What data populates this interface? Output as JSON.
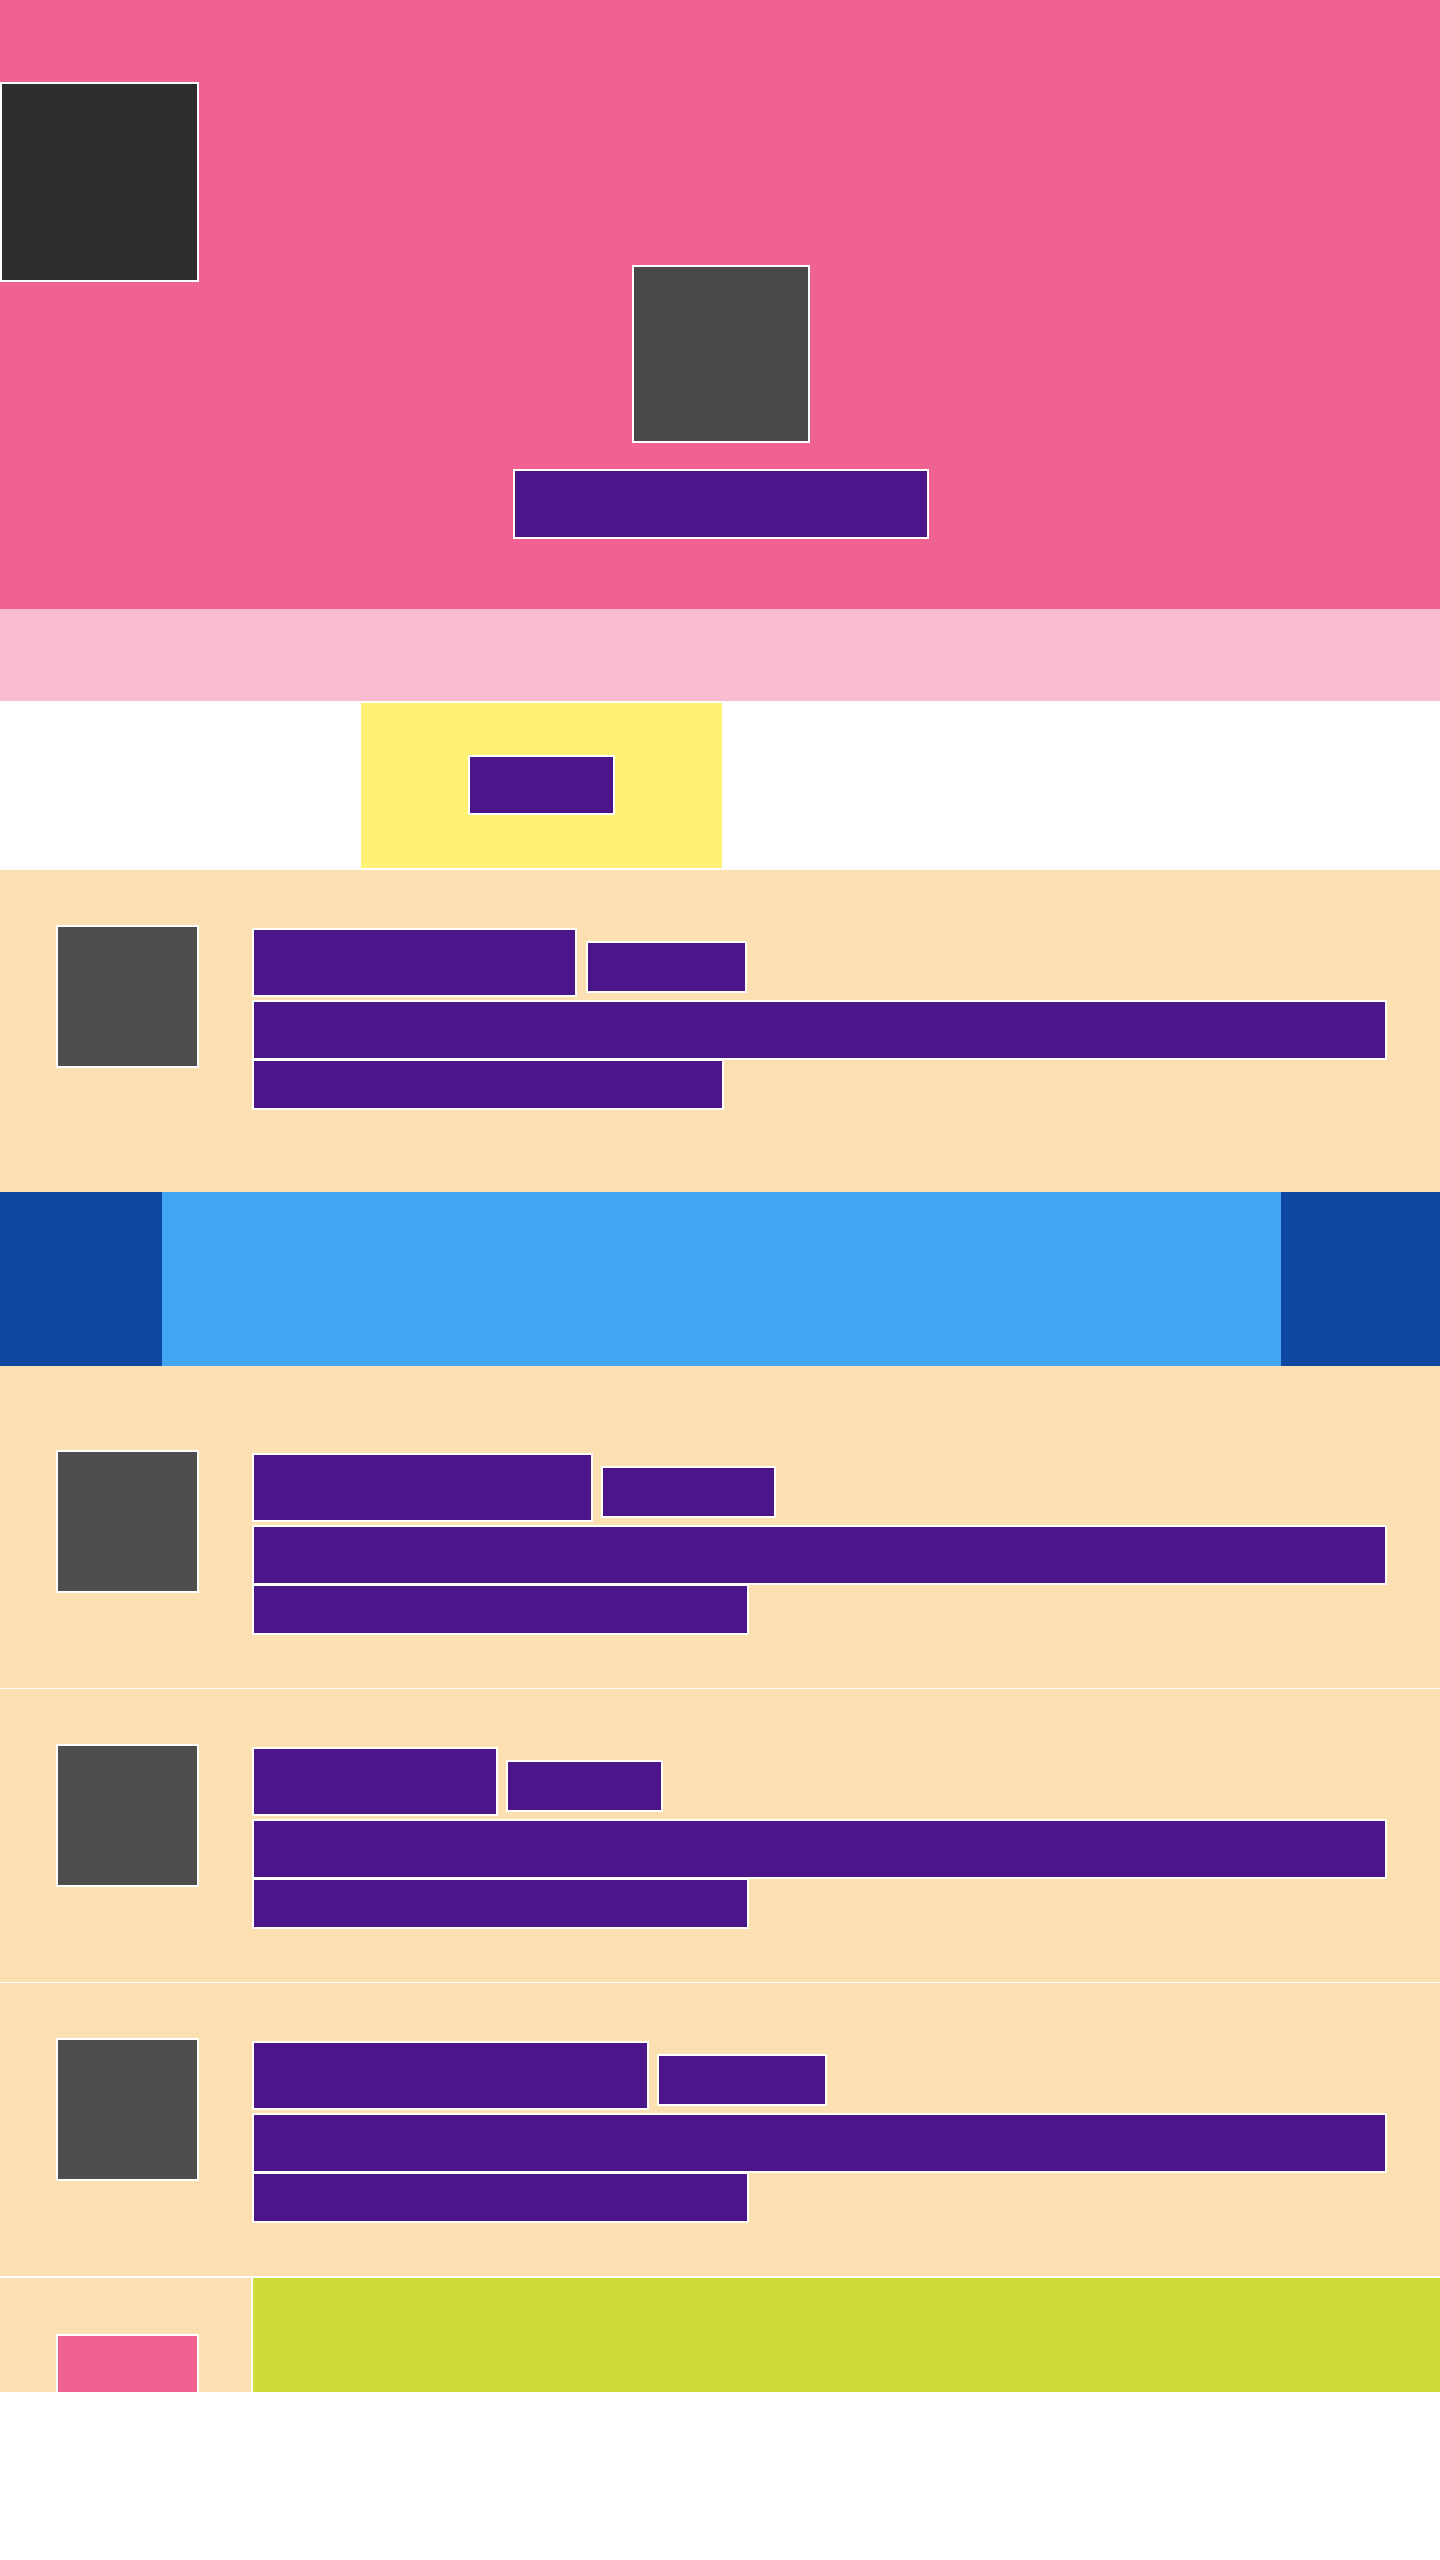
{
  "colors": {
    "header_bg": "#f06292",
    "header_strip": "#f8bbd0",
    "highlight_tab": "#fff176",
    "card_bg": "#fde0b2",
    "banner_side": "#0d47a1",
    "banner_center": "#42a5f5",
    "text_placeholder": "#4a168a",
    "image_placeholder": "#4e4e4e",
    "dark_image": "#2d2d2d",
    "footer_lime": "#cddc39",
    "footer_pink": "#f06292"
  },
  "header": {
    "logo_icon": "image-placeholder-icon",
    "center_icon": "image-placeholder-icon"
  },
  "list": {
    "items": [
      {
        "avatar_icon": "image-placeholder-icon"
      },
      {
        "avatar_icon": "image-placeholder-icon"
      },
      {
        "avatar_icon": "image-placeholder-icon"
      },
      {
        "avatar_icon": "image-placeholder-icon"
      }
    ]
  }
}
